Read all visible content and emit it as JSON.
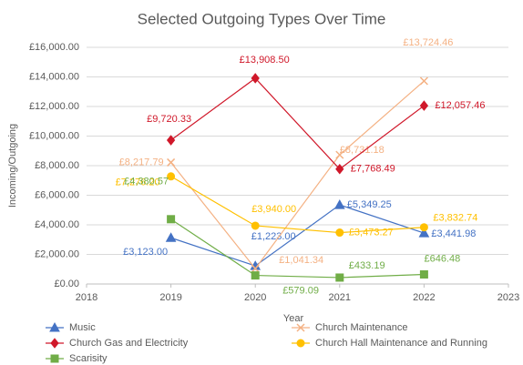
{
  "chart_data": {
    "type": "line",
    "title": "Selected Outgoing Types Over Time",
    "xlabel": "Year",
    "ylabel": "Incoming/Outgoing",
    "x": [
      2019,
      2020,
      2021,
      2022
    ],
    "xlim": [
      2018,
      2023
    ],
    "xticks": [
      2018,
      2019,
      2020,
      2021,
      2022,
      2023
    ],
    "ylim": [
      0,
      16000
    ],
    "yticks": [
      {
        "value": 0,
        "label": "£0.00"
      },
      {
        "value": 2000,
        "label": "£2,000.00"
      },
      {
        "value": 4000,
        "label": "£4,000.00"
      },
      {
        "value": 6000,
        "label": "£6,000.00"
      },
      {
        "value": 8000,
        "label": "£8,000.00"
      },
      {
        "value": 10000,
        "label": "£10,000.00"
      },
      {
        "value": 12000,
        "label": "£12,000.00"
      },
      {
        "value": 14000,
        "label": "£14,000.00"
      },
      {
        "value": 16000,
        "label": "£16,000.00"
      }
    ],
    "grid": true,
    "series": [
      {
        "name": "Music",
        "color": "#4472c4",
        "marker": "triangle",
        "values": [
          3123.0,
          1223.0,
          5349.25,
          3441.98
        ],
        "value_labels": [
          "£3,123.00",
          "£1,223.00",
          "£5,349.25",
          "£3,441.98"
        ]
      },
      {
        "name": "Church Maintenance",
        "color": "#f4b183",
        "marker": "x",
        "values": [
          8217.79,
          1041.34,
          8731.18,
          13724.46
        ],
        "value_labels": [
          "£8,217.79",
          "£1,041.34",
          "£8,731.18",
          "£13,724.46"
        ]
      },
      {
        "name": "Church Gas and Electricity",
        "color": "#d0182a",
        "marker": "diamond",
        "values": [
          9720.33,
          13908.5,
          7768.49,
          12057.46
        ],
        "value_labels": [
          "£9,720.33",
          "£13,908.50",
          "£7,768.49",
          "£12,057.46"
        ]
      },
      {
        "name": "Church Hall Maintenance and Running",
        "color": "#ffc000",
        "marker": "circle",
        "values": [
          7276.2,
          3940.0,
          3473.27,
          3832.74
        ],
        "value_labels": [
          "£7,276.20",
          "£3,940.00",
          "£3,473.27",
          "£3,832.74"
        ]
      },
      {
        "name": "Scarisity",
        "color": "#70ad47",
        "marker": "square",
        "values": [
          4380.57,
          579.09,
          433.19,
          646.48
        ],
        "value_labels": [
          "£4,380.57",
          "£579.09",
          "£433.19",
          "£646.48"
        ]
      }
    ]
  }
}
